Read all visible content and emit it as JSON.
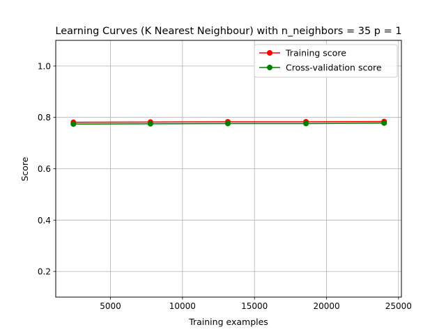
{
  "chart_data": {
    "type": "line",
    "title": "Learning Curves (K Nearest Neighbour) with n_neighbors = 35 p = 1",
    "xlabel": "Training examples",
    "ylabel": "Score",
    "xlim": [
      1200,
      25200
    ],
    "ylim": [
      0.1,
      1.1
    ],
    "xticks": [
      5000,
      10000,
      15000,
      20000,
      25000
    ],
    "yticks": [
      0.2,
      0.4,
      0.6,
      0.8,
      1.0
    ],
    "grid": true,
    "legend_position": "top-right",
    "x": [
      2425,
      7775,
      13150,
      18575,
      24000
    ],
    "series": [
      {
        "name": "Training score",
        "color": "#ff0000",
        "values": [
          0.781,
          0.782,
          0.783,
          0.783,
          0.784
        ],
        "band": [
          0.003,
          0.003,
          0.003,
          0.003,
          0.003
        ]
      },
      {
        "name": "Cross-validation score",
        "color": "#008000",
        "values": [
          0.774,
          0.775,
          0.776,
          0.776,
          0.778
        ],
        "band": [
          0.004,
          0.004,
          0.004,
          0.004,
          0.004
        ]
      }
    ]
  }
}
